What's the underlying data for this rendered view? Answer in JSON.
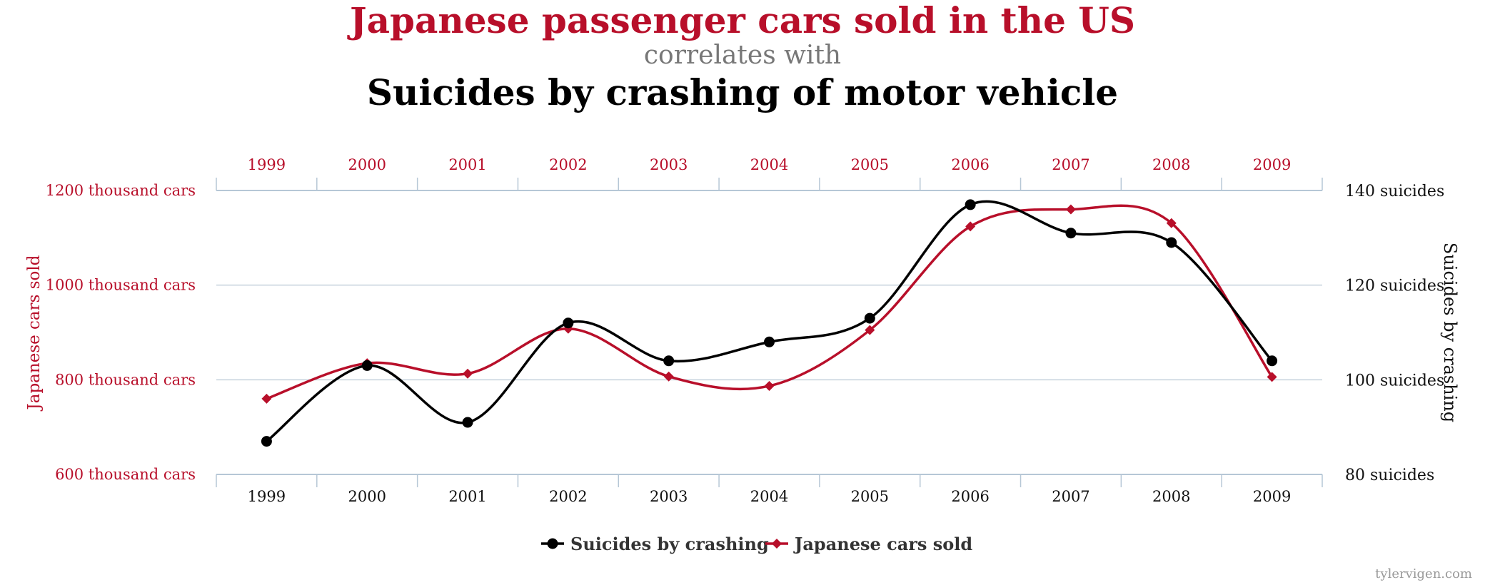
{
  "chart_data": {
    "type": "line",
    "title": "Japanese passenger cars sold in the US",
    "connector": "correlates with",
    "subtitle": "Suicides by crashing of motor vehicle",
    "x": [
      "1999",
      "2000",
      "2001",
      "2002",
      "2003",
      "2004",
      "2005",
      "2006",
      "2007",
      "2008",
      "2009"
    ],
    "series": [
      {
        "name": "Suicides by crashing",
        "axis": "right",
        "color": "#000000",
        "marker": "circle",
        "values": [
          87,
          103,
          91,
          112,
          104,
          108,
          113,
          137,
          131,
          129,
          104
        ]
      },
      {
        "name": "Japanese cars sold",
        "axis": "left",
        "color": "#b80f2a",
        "marker": "diamond",
        "values": [
          760,
          835,
          813,
          908,
          807,
          787,
          905,
          1124,
          1160,
          1131,
          806
        ]
      }
    ],
    "y_left": {
      "label": "Japanese cars sold",
      "ticks": [
        600,
        800,
        1000,
        1200
      ],
      "tick_labels": [
        "600 thousand cars",
        "800 thousand cars",
        "1000 thousand cars",
        "1200 thousand cars"
      ]
    },
    "y_right": {
      "label": "Suicides by crashing",
      "ticks": [
        80,
        100,
        120,
        140
      ],
      "tick_labels": [
        "80 suicides",
        "100 suicides",
        "120 suicides",
        "140 suicides"
      ]
    },
    "grid": true,
    "legend": "bottom-center",
    "credit": "tylervigen.com"
  }
}
